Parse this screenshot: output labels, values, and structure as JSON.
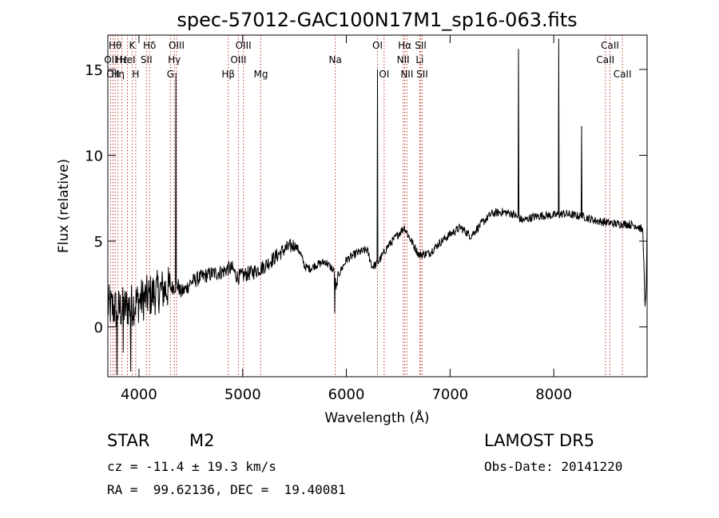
{
  "chart_data": {
    "type": "line",
    "title": "spec-57012-GAC100N17M1_sp16-063.fits",
    "xlabel": "Wavelength (Å)",
    "ylabel": "Flux (relative)",
    "xlim": [
      3700,
      8900
    ],
    "ylim": [
      -2.9,
      17.0
    ],
    "xticks": [
      4000,
      5000,
      6000,
      7000,
      8000
    ],
    "yticks": [
      0,
      5,
      10,
      15
    ],
    "grid": false,
    "line_color": "#000000",
    "marker_color": "#c0392b",
    "continuum": [
      [
        3700,
        1.2
      ],
      [
        3800,
        1.0
      ],
      [
        3900,
        1.2
      ],
      [
        4000,
        1.5
      ],
      [
        4100,
        1.8
      ],
      [
        4200,
        2.1
      ],
      [
        4300,
        2.3
      ],
      [
        4380,
        2.4
      ],
      [
        4400,
        2.0
      ],
      [
        4450,
        2.2
      ],
      [
        4500,
        2.6
      ],
      [
        4600,
        2.9
      ],
      [
        4700,
        3.1
      ],
      [
        4800,
        3.2
      ],
      [
        4860,
        3.4
      ],
      [
        4900,
        3.4
      ],
      [
        4950,
        2.9
      ],
      [
        5000,
        3.0
      ],
      [
        5100,
        3.2
      ],
      [
        5200,
        3.5
      ],
      [
        5300,
        4.0
      ],
      [
        5400,
        4.5
      ],
      [
        5500,
        4.8
      ],
      [
        5550,
        4.4
      ],
      [
        5600,
        3.5
      ],
      [
        5650,
        3.4
      ],
      [
        5700,
        3.6
      ],
      [
        5800,
        3.8
      ],
      [
        5890,
        3.2
      ],
      [
        5900,
        2.1
      ],
      [
        5920,
        3.0
      ],
      [
        6000,
        3.9
      ],
      [
        6100,
        4.3
      ],
      [
        6200,
        4.5
      ],
      [
        6250,
        3.5
      ],
      [
        6300,
        3.7
      ],
      [
        6350,
        4.2
      ],
      [
        6400,
        4.7
      ],
      [
        6500,
        5.4
      ],
      [
        6560,
        5.8
      ],
      [
        6600,
        5.3
      ],
      [
        6700,
        4.2
      ],
      [
        6800,
        4.3
      ],
      [
        6900,
        4.9
      ],
      [
        7000,
        5.4
      ],
      [
        7100,
        5.8
      ],
      [
        7200,
        5.3
      ],
      [
        7300,
        6.0
      ],
      [
        7400,
        6.6
      ],
      [
        7500,
        6.7
      ],
      [
        7600,
        6.6
      ],
      [
        7700,
        6.2
      ],
      [
        7800,
        6.4
      ],
      [
        7900,
        6.5
      ],
      [
        8000,
        6.5
      ],
      [
        8100,
        6.6
      ],
      [
        8200,
        6.5
      ],
      [
        8300,
        6.4
      ],
      [
        8400,
        6.2
      ],
      [
        8500,
        6.1
      ],
      [
        8600,
        6.0
      ],
      [
        8700,
        6.0
      ],
      [
        8800,
        5.9
      ],
      [
        8860,
        5.6
      ],
      [
        8880,
        1.0
      ],
      [
        8890,
        2.0
      ],
      [
        8900,
        5.8
      ]
    ],
    "emission_peaks": [
      {
        "x": 4358,
        "y": 14.8
      },
      {
        "x": 6300,
        "y": 15.0
      },
      {
        "x": 7660,
        "y": 16.2
      },
      {
        "x": 8050,
        "y": 16.8
      },
      {
        "x": 8270,
        "y": 11.7
      }
    ],
    "absorption_dips": [
      {
        "x": 3790,
        "y": -2.8
      },
      {
        "x": 3850,
        "y": -1.5
      },
      {
        "x": 3920,
        "y": -2.6
      },
      {
        "x": 5890,
        "y": 0.8
      }
    ],
    "reference_lines": [
      {
        "x": 3727,
        "label": "OII",
        "row": 1
      },
      {
        "x": 3750,
        "label": "OII",
        "row": 2
      },
      {
        "x": 3771,
        "label": "Hθ",
        "row": 0
      },
      {
        "x": 3798,
        "label": "Hη",
        "row": 2
      },
      {
        "x": 3835,
        "label": "Hε",
        "row": 1
      },
      {
        "x": 3889,
        "label": "HeI",
        "row": 1
      },
      {
        "x": 3934,
        "label": "K",
        "row": 0
      },
      {
        "x": 3969,
        "label": "H",
        "row": 2
      },
      {
        "x": 4072,
        "label": "SII",
        "row": 1
      },
      {
        "x": 4102,
        "label": "Hδ",
        "row": 0
      },
      {
        "x": 4304,
        "label": "G",
        "row": 2
      },
      {
        "x": 4341,
        "label": "Hγ",
        "row": 1
      },
      {
        "x": 4363,
        "label": "OIII",
        "row": 0
      },
      {
        "x": 4861,
        "label": "Hβ",
        "row": 2
      },
      {
        "x": 4959,
        "label": "OIII",
        "row": 1
      },
      {
        "x": 5007,
        "label": "OIII",
        "row": 0
      },
      {
        "x": 5175,
        "label": "Mg",
        "row": 2
      },
      {
        "x": 5893,
        "label": "Na",
        "row": 1
      },
      {
        "x": 6300,
        "label": "OI",
        "row": 0
      },
      {
        "x": 6364,
        "label": "OI",
        "row": 2
      },
      {
        "x": 6548,
        "label": "NII",
        "row": 1
      },
      {
        "x": 6563,
        "label": "Hα",
        "row": 0
      },
      {
        "x": 6584,
        "label": "NII",
        "row": 2
      },
      {
        "x": 6707,
        "label": "Li",
        "row": 1
      },
      {
        "x": 6717,
        "label": "SII",
        "row": 0
      },
      {
        "x": 6731,
        "label": "SII",
        "row": 2
      },
      {
        "x": 8498,
        "label": "CaII",
        "row": 1
      },
      {
        "x": 8542,
        "label": "CaII",
        "row": 0
      },
      {
        "x": 8662,
        "label": "CaII",
        "row": 2
      }
    ]
  },
  "info": {
    "object_class": "STAR",
    "subclass": "M2",
    "survey": "LAMOST DR5",
    "cz": "cz = -11.4 ± 19.3 km/s",
    "obs_date": "Obs-Date: 20141220",
    "coords": "RA =  99.62136, DEC =  19.40081"
  }
}
